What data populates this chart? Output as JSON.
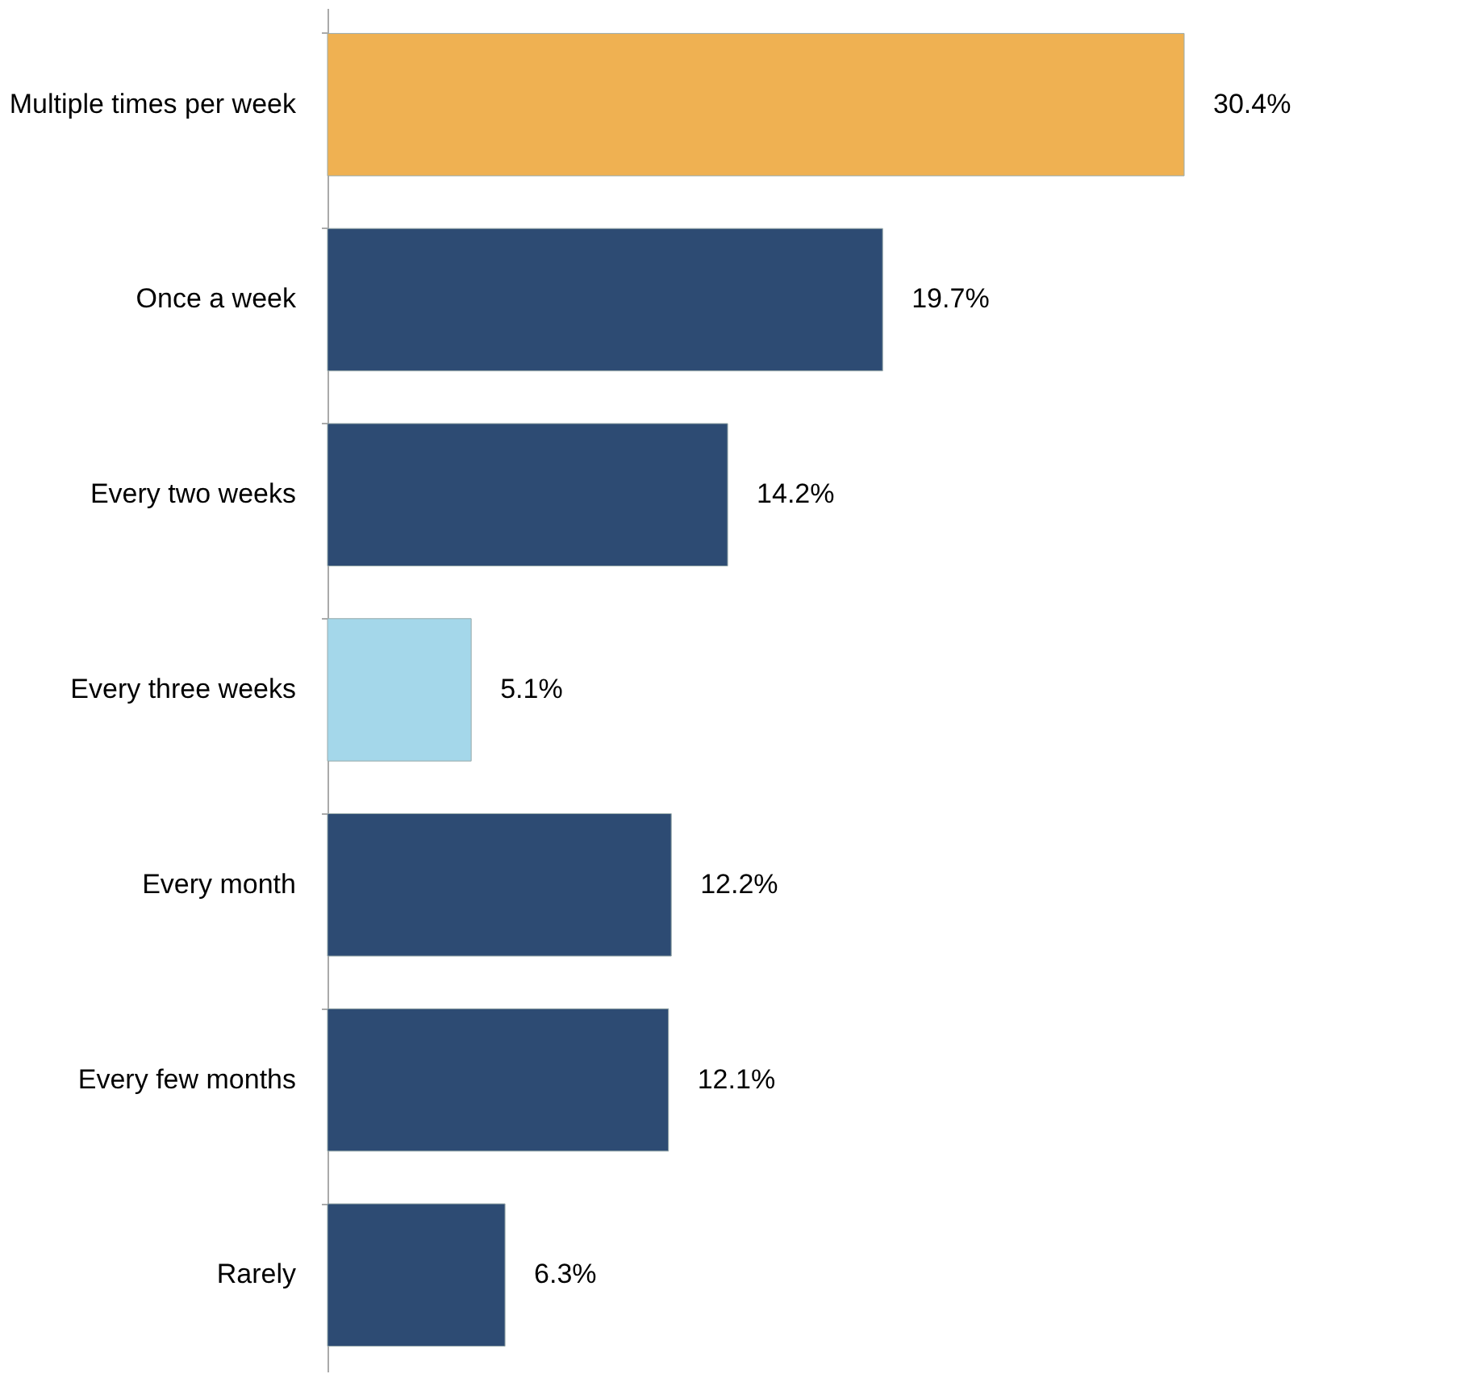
{
  "chart_data": {
    "type": "bar",
    "orientation": "horizontal",
    "categories": [
      "Multiple times per week",
      "Once a week",
      "Every two weeks",
      "Every three weeks",
      "Every month",
      "Every few months",
      "Rarely"
    ],
    "values": [
      30.4,
      19.7,
      14.2,
      5.1,
      12.2,
      12.1,
      6.3
    ],
    "value_labels": [
      "30.4%",
      "19.7%",
      "14.2%",
      "5.1%",
      "12.2%",
      "12.1%",
      "6.3%"
    ],
    "colors": [
      "#efb152",
      "#2d4b73",
      "#2d4b73",
      "#a4d7ea",
      "#2d4b73",
      "#2d4b73",
      "#2d4b73"
    ],
    "tick_labels": "y",
    "grid": false
  }
}
